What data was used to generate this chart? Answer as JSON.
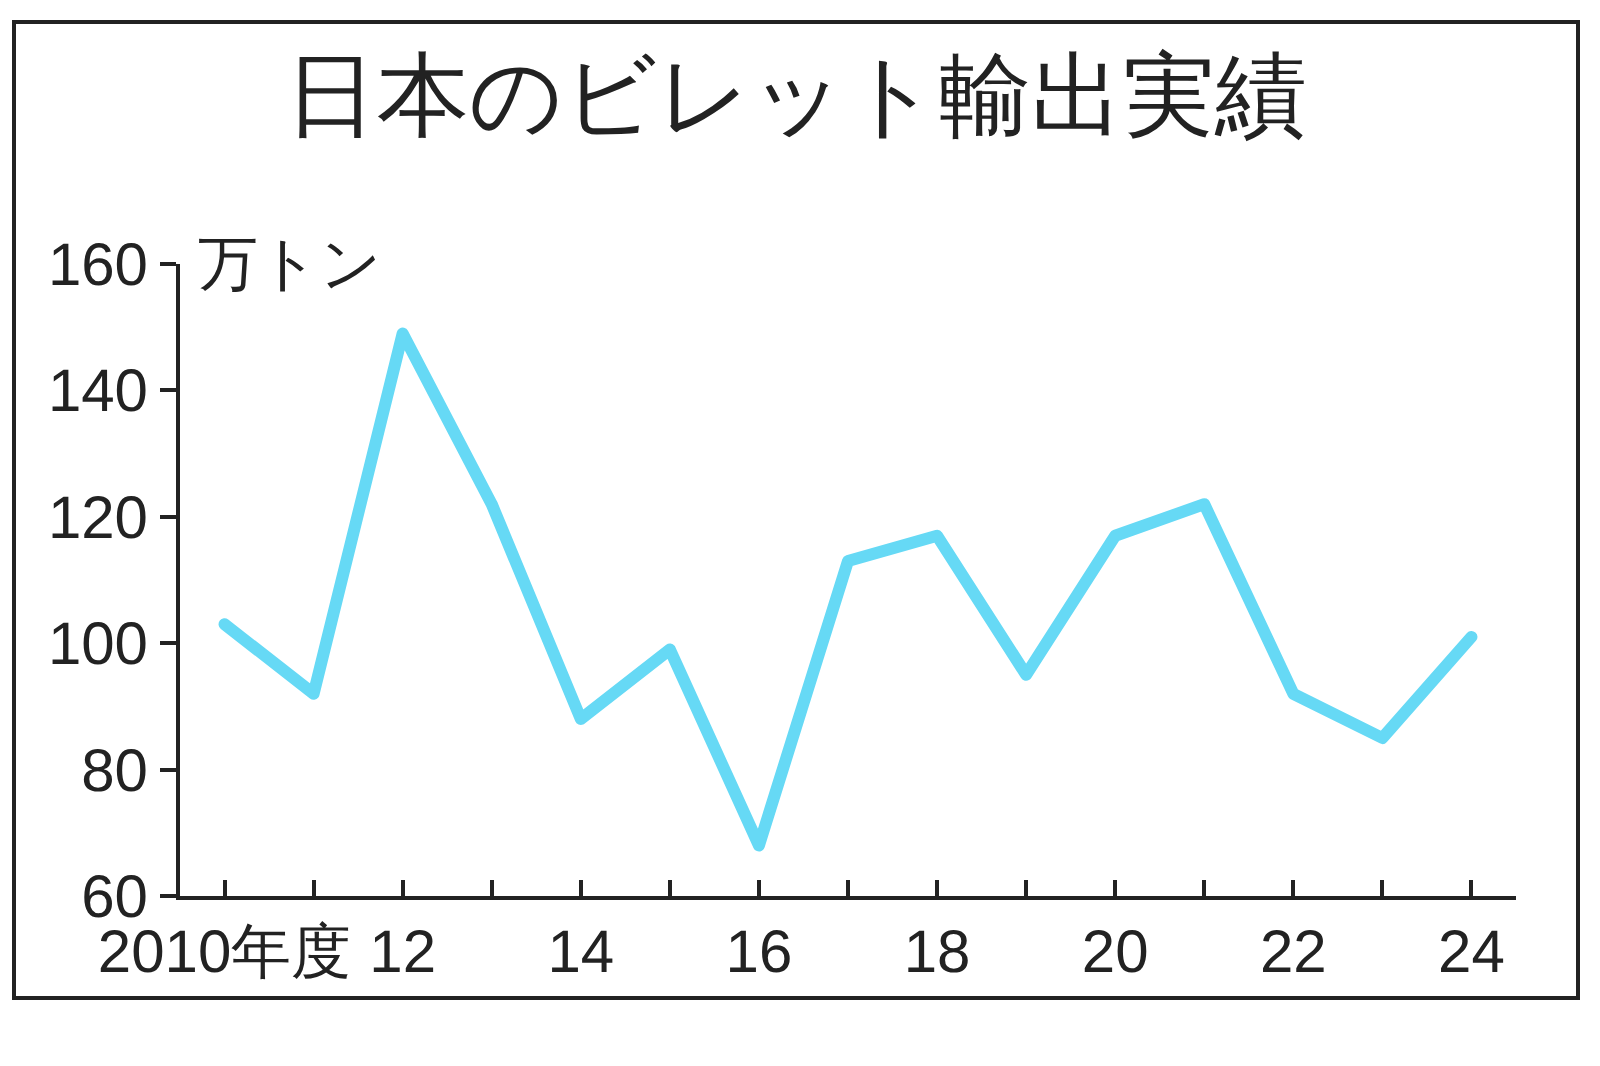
{
  "chart_data": {
    "type": "line",
    "title": "日本のビレット輸出実績",
    "ylabel": "万トン",
    "x": [
      2010,
      2011,
      2012,
      2013,
      2014,
      2015,
      2016,
      2017,
      2018,
      2019,
      2020,
      2021,
      2022,
      2023,
      2024
    ],
    "series": [
      {
        "color": "#66d9f5",
        "values": [
          103,
          92,
          149,
          122,
          88,
          99,
          68,
          113,
          117,
          95,
          117,
          122,
          92,
          85,
          101
        ]
      }
    ],
    "xlim": [
      2009.5,
      2024.5
    ],
    "xticks": [
      {
        "value": 2010,
        "label": "2010年度"
      },
      {
        "value": 2011,
        "label": null
      },
      {
        "value": 2012,
        "label": "12"
      },
      {
        "value": 2013,
        "label": null
      },
      {
        "value": 2014,
        "label": "14"
      },
      {
        "value": 2015,
        "label": null
      },
      {
        "value": 2016,
        "label": "16"
      },
      {
        "value": 2017,
        "label": null
      },
      {
        "value": 2018,
        "label": "18"
      },
      {
        "value": 2019,
        "label": null
      },
      {
        "value": 2020,
        "label": "20"
      },
      {
        "value": 2021,
        "label": null
      },
      {
        "value": 2022,
        "label": "22"
      },
      {
        "value": 2023,
        "label": null
      },
      {
        "value": 2024,
        "label": "24"
      }
    ],
    "ylim": [
      60,
      160
    ],
    "yticks": [
      60,
      80,
      100,
      120,
      140,
      160
    ],
    "grid": false,
    "marker": "none",
    "line_style": "solid"
  }
}
